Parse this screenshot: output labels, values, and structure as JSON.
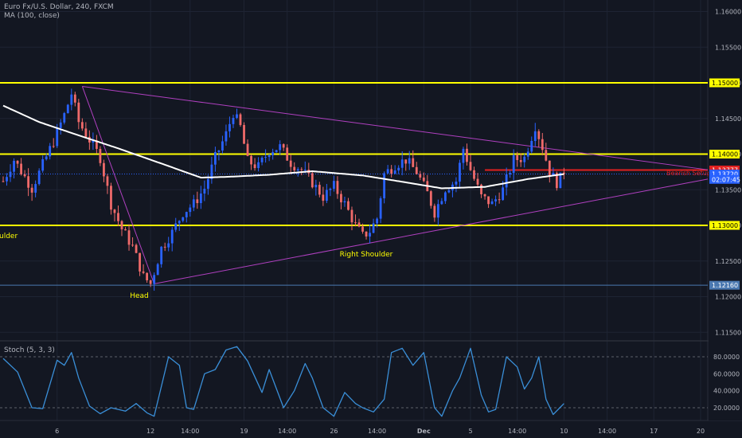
{
  "header": {
    "symbol_line": "Euro Fx/U.S. Dollar, 240, FXCM",
    "ma_line": "MA (100, close)"
  },
  "stoch_label": "Stoch (5, 3, 3)",
  "annotations": {
    "left_shoulder": "ulder",
    "head": "Head",
    "right_shoulder": "Right Shoulder",
    "bearish_label": "Bearish Setup"
  },
  "price_axis": {
    "ticks": [
      "1.16000",
      "1.15500",
      "1.15000",
      "1.14500",
      "1.14000",
      "1.13500",
      "1.13000",
      "1.12500",
      "1.12000",
      "1.11500"
    ],
    "tick_values": [
      1.16,
      1.155,
      1.15,
      1.145,
      1.14,
      1.135,
      1.13,
      1.125,
      1.12,
      1.115
    ]
  },
  "price_badges": [
    {
      "text": "1.15000",
      "value": 1.15,
      "style": "yellow"
    },
    {
      "text": "1.14000",
      "value": 1.14,
      "style": "yellow"
    },
    {
      "text": "1.13777",
      "value": 1.13777,
      "style": "red"
    },
    {
      "text": "1.13720",
      "value": 1.1372,
      "style": "blue"
    },
    {
      "text": "02:07:45",
      "value": 1.13645,
      "style": "blue"
    },
    {
      "text": "1.13000",
      "value": 1.13,
      "style": "yellow"
    },
    {
      "text": "1.12160",
      "value": 1.1216,
      "style": "steel"
    }
  ],
  "stoch_axis": {
    "ticks": [
      "80.0000",
      "60.0000",
      "40.0000",
      "20.0000"
    ],
    "tick_values": [
      80,
      60,
      40,
      20
    ]
  },
  "time_axis": {
    "labels": [
      "6",
      "12",
      "14:00",
      "19",
      "14:00",
      "26",
      "14:00",
      "Dec",
      "5",
      "14:00",
      "10",
      "14:00",
      "17",
      "20"
    ],
    "bold": [
      false,
      false,
      false,
      false,
      false,
      false,
      false,
      true,
      false,
      false,
      false,
      false,
      false,
      false
    ]
  },
  "colors": {
    "background": "#131722",
    "bull": "#2962ff",
    "bear": "#ef6a6a",
    "ma": "#ffffff",
    "level": "#ffff00",
    "resistance": "#e02020",
    "triangle": "#b040c0",
    "stoch": "#3a8fd8",
    "grid": "#1e2433"
  },
  "chart_data": [
    {
      "type": "candlestick",
      "title": "Euro Fx/U.S. Dollar, 240, FXCM",
      "ylim": [
        1.113,
        1.162
      ],
      "horizontal_levels": [
        1.15,
        1.14,
        1.13
      ],
      "resistance_level": 1.13777,
      "last_price": 1.1372,
      "low_marker": 1.1216,
      "pattern": "head and shoulders with symmetrical triangle",
      "indicator": "MA (100, close)",
      "anchors": [
        {
          "t": 0,
          "p": 1.1362
        },
        {
          "t": 3,
          "p": 1.1392
        },
        {
          "t": 6,
          "p": 1.1368
        },
        {
          "t": 8,
          "p": 1.1352
        },
        {
          "t": 11,
          "p": 1.1385
        },
        {
          "t": 14,
          "p": 1.1418
        },
        {
          "t": 17,
          "p": 1.1455
        },
        {
          "t": 19,
          "p": 1.1485
        },
        {
          "t": 21,
          "p": 1.1445
        },
        {
          "t": 24,
          "p": 1.142
        },
        {
          "t": 27,
          "p": 1.1395
        },
        {
          "t": 30,
          "p": 1.133
        },
        {
          "t": 33,
          "p": 1.1295
        },
        {
          "t": 36,
          "p": 1.127
        },
        {
          "t": 39,
          "p": 1.1228
        },
        {
          "t": 41,
          "p": 1.1218
        },
        {
          "t": 44,
          "p": 1.1268
        },
        {
          "t": 47,
          "p": 1.129
        },
        {
          "t": 50,
          "p": 1.1318
        },
        {
          "t": 53,
          "p": 1.133
        },
        {
          "t": 56,
          "p": 1.1352
        },
        {
          "t": 59,
          "p": 1.1395
        },
        {
          "t": 62,
          "p": 1.1428
        },
        {
          "t": 64,
          "p": 1.1458
        },
        {
          "t": 66,
          "p": 1.1438
        },
        {
          "t": 68,
          "p": 1.139
        },
        {
          "t": 71,
          "p": 1.1382
        },
        {
          "t": 74,
          "p": 1.1405
        },
        {
          "t": 77,
          "p": 1.141
        },
        {
          "t": 80,
          "p": 1.1388
        },
        {
          "t": 83,
          "p": 1.1378
        },
        {
          "t": 86,
          "p": 1.136
        },
        {
          "t": 89,
          "p": 1.134
        },
        {
          "t": 92,
          "p": 1.1355
        },
        {
          "t": 95,
          "p": 1.133
        },
        {
          "t": 98,
          "p": 1.13
        },
        {
          "t": 100,
          "p": 1.1285
        },
        {
          "t": 102,
          "p": 1.1292
        },
        {
          "t": 104,
          "p": 1.131
        },
        {
          "t": 106,
          "p": 1.1372
        },
        {
          "t": 109,
          "p": 1.1385
        },
        {
          "t": 112,
          "p": 1.1392
        },
        {
          "t": 115,
          "p": 1.1375
        },
        {
          "t": 118,
          "p": 1.1345
        },
        {
          "t": 120,
          "p": 1.1318
        },
        {
          "t": 123,
          "p": 1.1352
        },
        {
          "t": 126,
          "p": 1.1362
        },
        {
          "t": 128,
          "p": 1.1408
        },
        {
          "t": 130,
          "p": 1.1378
        },
        {
          "t": 133,
          "p": 1.134
        },
        {
          "t": 136,
          "p": 1.133
        },
        {
          "t": 139,
          "p": 1.135
        },
        {
          "t": 142,
          "p": 1.1392
        },
        {
          "t": 145,
          "p": 1.1395
        },
        {
          "t": 148,
          "p": 1.144
        },
        {
          "t": 150,
          "p": 1.141
        },
        {
          "t": 152,
          "p": 1.1375
        },
        {
          "t": 154,
          "p": 1.136
        },
        {
          "t": 156,
          "p": 1.1372
        }
      ],
      "ma_anchors": [
        {
          "t": 0,
          "p": 1.1468
        },
        {
          "t": 10,
          "p": 1.1445
        },
        {
          "t": 20,
          "p": 1.1428
        },
        {
          "t": 32,
          "p": 1.1408
        },
        {
          "t": 45,
          "p": 1.1385
        },
        {
          "t": 55,
          "p": 1.1367
        },
        {
          "t": 62,
          "p": 1.1368
        },
        {
          "t": 74,
          "p": 1.1371
        },
        {
          "t": 86,
          "p": 1.1376
        },
        {
          "t": 100,
          "p": 1.137
        },
        {
          "t": 110,
          "p": 1.1362
        },
        {
          "t": 122,
          "p": 1.1352
        },
        {
          "t": 134,
          "p": 1.1354
        },
        {
          "t": 146,
          "p": 1.1365
        },
        {
          "t": 156,
          "p": 1.1372
        }
      ],
      "triangle_upper": [
        {
          "t": 22,
          "p": 1.1495
        },
        {
          "t": 196,
          "p": 1.1378
        }
      ],
      "triangle_lower": [
        {
          "t": 42,
          "p": 1.1218
        },
        {
          "t": 196,
          "p": 1.1365
        }
      ],
      "neckline": [
        {
          "t": 134,
          "p": 1.1378
        },
        {
          "t": 196,
          "p": 1.1378
        }
      ]
    },
    {
      "type": "line",
      "title": "Stoch (5, 3, 3)",
      "ylim": [
        -5,
        105
      ],
      "reference_lines": [
        80,
        20
      ],
      "values": [
        {
          "t": 0,
          "v": 78
        },
        {
          "t": 4,
          "v": 62
        },
        {
          "t": 8,
          "v": 20
        },
        {
          "t": 11,
          "v": 19
        },
        {
          "t": 15,
          "v": 76
        },
        {
          "t": 17,
          "v": 70
        },
        {
          "t": 19,
          "v": 85
        },
        {
          "t": 21,
          "v": 55
        },
        {
          "t": 24,
          "v": 22
        },
        {
          "t": 27,
          "v": 13
        },
        {
          "t": 30,
          "v": 20
        },
        {
          "t": 34,
          "v": 16
        },
        {
          "t": 37,
          "v": 25
        },
        {
          "t": 40,
          "v": 14
        },
        {
          "t": 42,
          "v": 10
        },
        {
          "t": 46,
          "v": 80
        },
        {
          "t": 49,
          "v": 70
        },
        {
          "t": 51,
          "v": 20
        },
        {
          "t": 53,
          "v": 18
        },
        {
          "t": 56,
          "v": 60
        },
        {
          "t": 59,
          "v": 65
        },
        {
          "t": 62,
          "v": 88
        },
        {
          "t": 65,
          "v": 92
        },
        {
          "t": 68,
          "v": 75
        },
        {
          "t": 72,
          "v": 38
        },
        {
          "t": 74,
          "v": 65
        },
        {
          "t": 78,
          "v": 20
        },
        {
          "t": 81,
          "v": 40
        },
        {
          "t": 84,
          "v": 72
        },
        {
          "t": 86,
          "v": 55
        },
        {
          "t": 89,
          "v": 20
        },
        {
          "t": 92,
          "v": 10
        },
        {
          "t": 95,
          "v": 38
        },
        {
          "t": 98,
          "v": 25
        },
        {
          "t": 100,
          "v": 20
        },
        {
          "t": 103,
          "v": 15
        },
        {
          "t": 106,
          "v": 30
        },
        {
          "t": 108,
          "v": 85
        },
        {
          "t": 111,
          "v": 90
        },
        {
          "t": 114,
          "v": 70
        },
        {
          "t": 117,
          "v": 85
        },
        {
          "t": 120,
          "v": 20
        },
        {
          "t": 122,
          "v": 10
        },
        {
          "t": 125,
          "v": 40
        },
        {
          "t": 127,
          "v": 55
        },
        {
          "t": 130,
          "v": 90
        },
        {
          "t": 133,
          "v": 35
        },
        {
          "t": 135,
          "v": 15
        },
        {
          "t": 137,
          "v": 18
        },
        {
          "t": 140,
          "v": 80
        },
        {
          "t": 143,
          "v": 68
        },
        {
          "t": 145,
          "v": 42
        },
        {
          "t": 147,
          "v": 55
        },
        {
          "t": 149,
          "v": 80
        },
        {
          "t": 151,
          "v": 30
        },
        {
          "t": 153,
          "v": 12
        },
        {
          "t": 156,
          "v": 25
        }
      ]
    }
  ]
}
